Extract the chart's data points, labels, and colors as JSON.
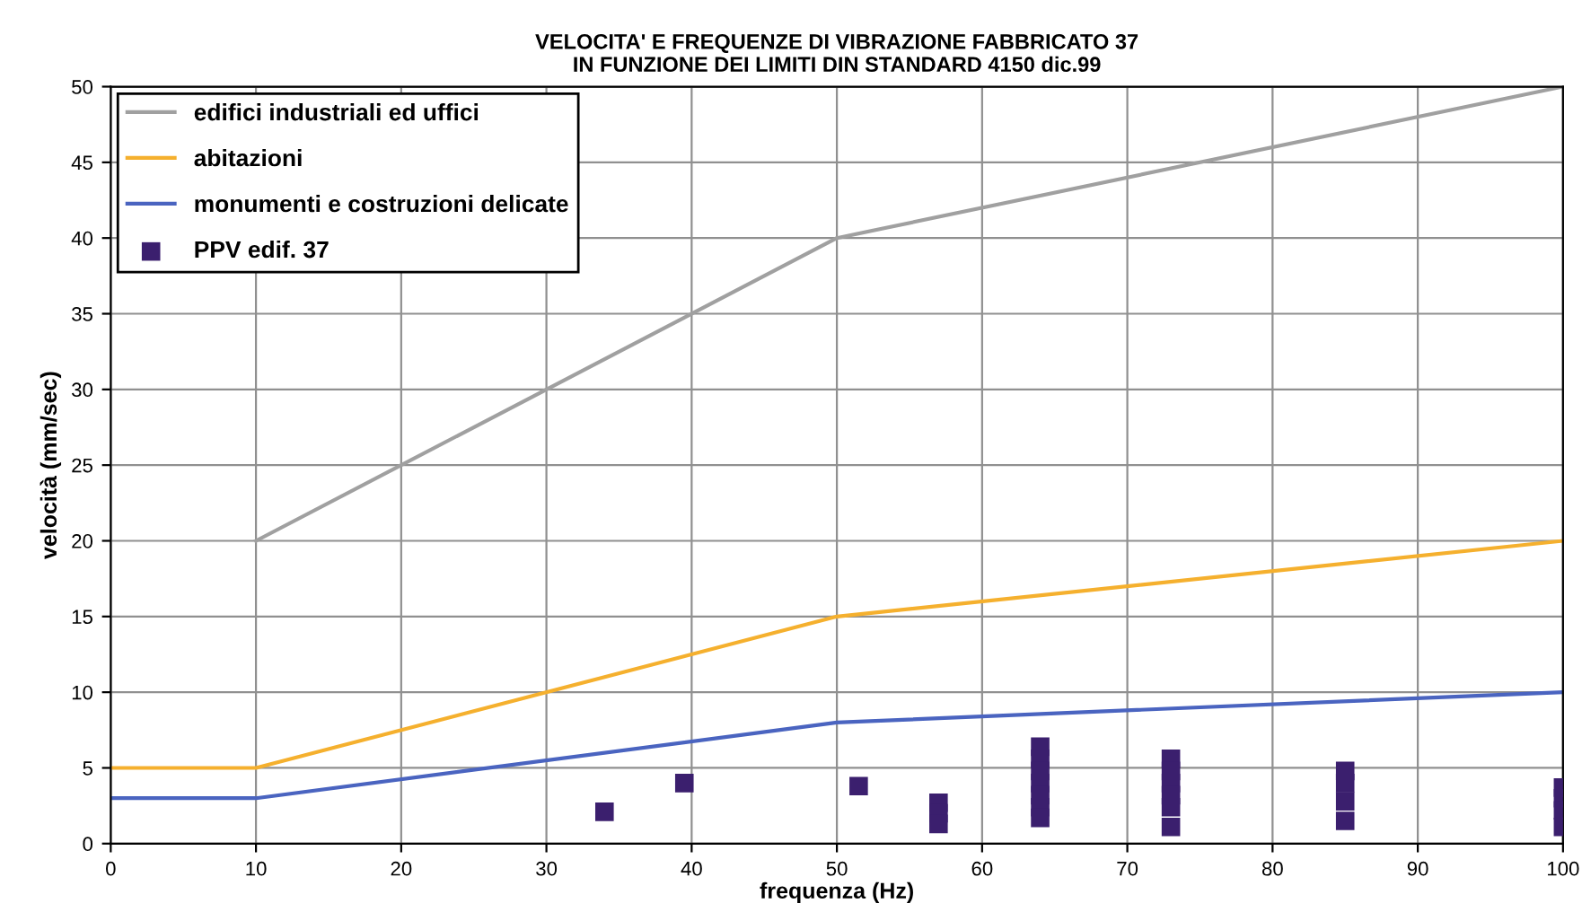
{
  "chart_data": {
    "type": "line",
    "title": "VELOCITA' E FREQUENZE DI VIBRAZIONE FABBRICATO 37\nIN FUNZIONE DEI LIMITI DIN STANDARD 4150 dic.99",
    "xlabel": "frequenza (Hz)",
    "ylabel": "velocità (mm/sec)",
    "series": [
      {
        "name": "edifici industriali ed uffici",
        "color": "#a0a0a0",
        "x": [
          10,
          50,
          100
        ],
        "values": [
          20,
          40,
          50
        ]
      },
      {
        "name": "abitazioni",
        "color": "#f5b02e",
        "x": [
          0,
          10,
          50,
          100
        ],
        "values": [
          5,
          5,
          15,
          20
        ]
      },
      {
        "name": "monumenti e costruzioni delicate",
        "color": "#4a64c0",
        "x": [
          0,
          10,
          50,
          100
        ],
        "values": [
          3,
          3,
          8,
          10
        ]
      },
      {
        "name": "PPV edif. 37",
        "type": "scatter",
        "marker": "square",
        "color": "#3b1f6e",
        "x": [
          34,
          39.5,
          51.5,
          57,
          57,
          57,
          64,
          64,
          64,
          64,
          64,
          64,
          64,
          73,
          73,
          73,
          73,
          73,
          73,
          85,
          85,
          85,
          85,
          100,
          100,
          100,
          100
        ],
        "values": [
          2.1,
          4.0,
          3.8,
          2.7,
          2.0,
          1.3,
          6.4,
          5.6,
          4.8,
          4.0,
          3.2,
          2.4,
          1.7,
          5.6,
          4.8,
          4.0,
          3.2,
          2.4,
          1.1,
          4.8,
          4.0,
          2.8,
          1.5,
          3.7,
          3.0,
          2.2,
          1.1
        ]
      }
    ],
    "xlim": [
      0,
      100
    ],
    "ylim": [
      0,
      50
    ],
    "xticks": [
      0,
      10,
      20,
      30,
      40,
      50,
      60,
      70,
      80,
      90,
      100
    ],
    "yticks": [
      0,
      5,
      10,
      15,
      20,
      25,
      30,
      35,
      40,
      45,
      50
    ],
    "grid": true,
    "legend": "top left",
    "marker": "none",
    "line_style": "solid"
  }
}
